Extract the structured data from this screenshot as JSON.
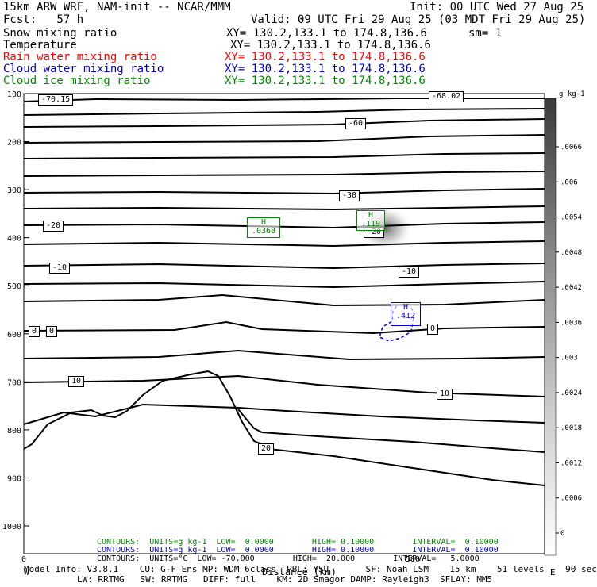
{
  "header": {
    "line1_left": "15km ARW WRF, NAM-init -- NCAR/MMM",
    "line1_right": "Init: 00 UTC Wed 27 Aug 25",
    "fcst": "Fcst:   57 h",
    "valid": "Valid: 09 UTC Fri 29 Aug 25 (03 MDT Fri 29 Aug 25)",
    "fields": [
      {
        "name": "Snow mixing ratio",
        "xy": "XY= 130.2,133.1 to 174.8,136.6",
        "extra": "sm= 1",
        "color": "#000000"
      },
      {
        "name": "Temperature",
        "xy": "XY= 130.2,133.1 to 174.8,136.6",
        "extra": "",
        "color": "#000000"
      },
      {
        "name": "Rain water mixing ratio",
        "xy": "XY= 130.2,133.1 to 174.8,136.6",
        "extra": "",
        "color": "#ff0000"
      },
      {
        "name": "Cloud water mixing ratio",
        "xy": "XY= 130.2,133.1 to 174.8,136.6",
        "extra": "",
        "color": "#0000cc"
      },
      {
        "name": "Cloud ice mixing ratio",
        "xy": "XY= 130.2,133.1 to 174.8,136.6",
        "extra": "",
        "color": "#008800"
      }
    ]
  },
  "chart_data": {
    "type": "contour",
    "xlabel": "Distance (km)",
    "x_ticks": [
      "0",
      "500"
    ],
    "y_ticks": [
      "100",
      "200",
      "300",
      "400",
      "500",
      "600",
      "700",
      "800",
      "900",
      "1000"
    ],
    "colorbar_unit": "g kg-1",
    "colorbar_ticks": [
      ".0066",
      ".006",
      ".0054",
      ".0048",
      ".0042",
      ".0036",
      ".003",
      ".0024",
      ".0018",
      ".0012",
      ".0006",
      "0"
    ],
    "temperature_labels": [
      "-70.15",
      "-68.02",
      "-60",
      "-30",
      "-20",
      "-20",
      "-10",
      "-10",
      "0",
      "0",
      "0",
      "10",
      "10",
      "20"
    ],
    "highs": [
      {
        "label": "H",
        "value": ".0368",
        "color": "#008800"
      },
      {
        "label": "H",
        "value": ".119",
        "color": "#008800"
      },
      {
        "label": "H",
        "value": ".412",
        "color": "#0000cc"
      }
    ],
    "contour_info": [
      {
        "text": "CONTOURS:  UNITS=g kg-1  LOW=  0.0000        HIGH= 0.10000        INTERVAL=  0.10000",
        "color": "#008800"
      },
      {
        "text": "CONTOURS:  UNITS=g kg-1  LOW=  0.0000        HIGH= 0.10000        INTERVAL=  0.10000",
        "color": "#0000cc"
      },
      {
        "text": "CONTOURS:  UNITS=°C  LOW= -70.000        HIGH=  20.000        INTERVAL=   5.0000",
        "color": "#000000"
      }
    ]
  },
  "footer": {
    "line1": "Model Info: V3.8.1    CU: G-F Ens MP: WDM 6class  PBL: YSU       SF: Noah LSM    15 km    51 levels    90 sec",
    "line2": "LW: RRTMG   SW: RRTMG   DIFF: full    KM: 2D Smagor DAMP: Rayleigh3  SFLAY: MM5",
    "w_label": "W",
    "e_label": "E"
  }
}
